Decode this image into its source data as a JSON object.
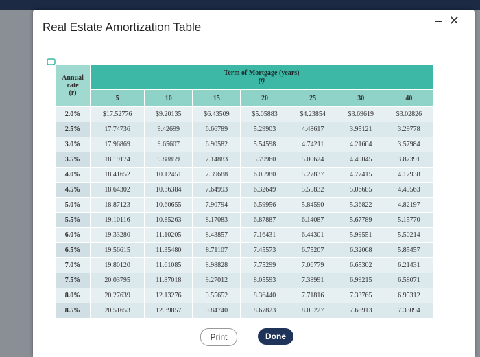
{
  "dialog": {
    "title": "Real Estate Amortization Table",
    "buttons": [
      "Print",
      "Done"
    ]
  },
  "table": {
    "rate_header": [
      "Annual rate",
      "(r)"
    ],
    "term_header": [
      "Term of Mortgage (years)",
      "(t)"
    ],
    "columns": [
      "5",
      "10",
      "15",
      "20",
      "25",
      "30",
      "40"
    ],
    "rows": [
      [
        "2.0%",
        "$17.52776",
        "$9.20135",
        "$6.43509",
        "$5.05883",
        "$4.23854",
        "$3.69619",
        "$3.02826"
      ],
      [
        "2.5%",
        "17.74736",
        "9.42699",
        "6.66789",
        "5.29903",
        "4.48617",
        "3.95121",
        "3.29778"
      ],
      [
        "3.0%",
        "17.96869",
        "9.65607",
        "6.90582",
        "5.54598",
        "4.74211",
        "4.21604",
        "3.57984"
      ],
      [
        "3.5%",
        "18.19174",
        "9.88859",
        "7.14883",
        "5.79960",
        "5.00624",
        "4.49045",
        "3.87391"
      ],
      [
        "4.0%",
        "18.41652",
        "10.12451",
        "7.39688",
        "6.05980",
        "5.27837",
        "4.77415",
        "4.17938"
      ],
      [
        "4.5%",
        "18.64302",
        "10.36384",
        "7.64993",
        "6.32649",
        "5.55832",
        "5.06685",
        "4.49563"
      ],
      [
        "5.0%",
        "18.87123",
        "10.60655",
        "7.90794",
        "6.59956",
        "5.84590",
        "5.36822",
        "4.82197"
      ],
      [
        "5.5%",
        "19.10116",
        "10.85263",
        "8.17083",
        "6.87887",
        "6.14087",
        "5.67789",
        "5.15770"
      ],
      [
        "6.0%",
        "19.33280",
        "11.10205",
        "8.43857",
        "7.16431",
        "6.44301",
        "5.99551",
        "5.50214"
      ],
      [
        "6.5%",
        "19.56615",
        "11.35480",
        "8.71107",
        "7.45573",
        "6.75207",
        "6.32068",
        "5.85457"
      ],
      [
        "7.0%",
        "19.80120",
        "11.61085",
        "8.98828",
        "7.75299",
        "7.06779",
        "6.65302",
        "6.21431"
      ],
      [
        "7.5%",
        "20.03795",
        "11.87018",
        "9.27012",
        "8.05593",
        "7.38991",
        "6.99215",
        "6.58071"
      ],
      [
        "8.0%",
        "20.27639",
        "12.13276",
        "9.55652",
        "8.36440",
        "7.71816",
        "7.33765",
        "6.95312"
      ],
      [
        "8.5%",
        "20.51653",
        "12.39857",
        "9.84740",
        "8.67823",
        "8.05227",
        "7.68913",
        "7.33094"
      ]
    ]
  }
}
